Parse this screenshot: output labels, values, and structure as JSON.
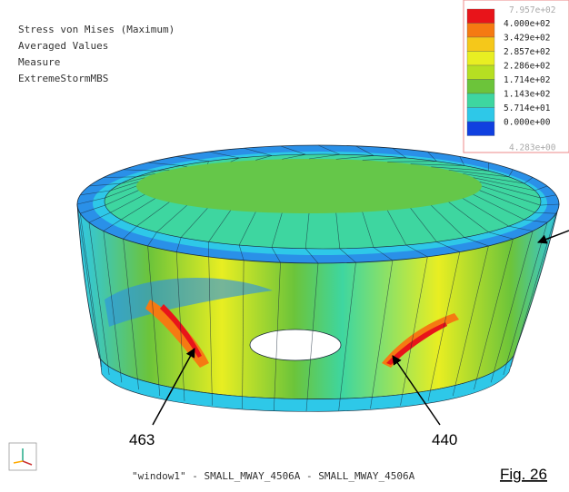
{
  "header": {
    "lines": [
      "Stress von Mises (Maximum)",
      "Averaged Values",
      "Measure",
      "ExtremeStormMBS"
    ]
  },
  "legend": {
    "max_label": "7.957e+02",
    "min_label": "4.283e+00",
    "colors": [
      "#e8141a",
      "#f57a12",
      "#f5c81a",
      "#e8ee22",
      "#b6df22",
      "#6cc43a",
      "#3ed6a0",
      "#2ec8e8",
      "#1040e0"
    ],
    "labels": [
      "4.000e+02",
      "3.429e+02",
      "2.857e+02",
      "2.286e+02",
      "1.714e+02",
      "1.143e+02",
      "5.714e+01",
      "0.000e+00"
    ]
  },
  "annotations": [
    "463",
    "440"
  ],
  "footer": "\"window1\" - SMALL_MWAY_4506A - SMALL_MWAY_4506A",
  "figure_label": "Fig. 26"
}
